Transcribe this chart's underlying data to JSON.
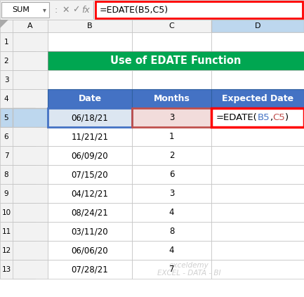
{
  "title": "Use of EDATE Function",
  "title_bg": "#00A651",
  "title_color": "#FFFFFF",
  "header_bg": "#4472C4",
  "header_color": "#FFFFFF",
  "headers": [
    "Date",
    "Months",
    "Expected Date"
  ],
  "rows": [
    {
      "date": "06/18/21",
      "months": "3",
      "expected": "=EDATE(B5,C5)",
      "hi_date": true,
      "hi_months": true
    },
    {
      "date": "11/21/21",
      "months": "1",
      "expected": "",
      "hi_date": false,
      "hi_months": false
    },
    {
      "date": "06/09/20",
      "months": "2",
      "expected": "",
      "hi_date": false,
      "hi_months": false
    },
    {
      "date": "07/15/20",
      "months": "6",
      "expected": "",
      "hi_date": false,
      "hi_months": false
    },
    {
      "date": "04/12/21",
      "months": "3",
      "expected": "",
      "hi_date": false,
      "hi_months": false
    },
    {
      "date": "08/24/21",
      "months": "4",
      "expected": "",
      "hi_date": false,
      "hi_months": false
    },
    {
      "date": "03/11/20",
      "months": "8",
      "expected": "",
      "hi_date": false,
      "hi_months": false
    },
    {
      "date": "06/06/20",
      "months": "4",
      "expected": "",
      "hi_date": false,
      "hi_months": false
    },
    {
      "date": "07/28/21",
      "months": "7",
      "expected": "",
      "hi_date": false,
      "hi_months": false
    }
  ],
  "formula_bar_text": "=EDATE(B5,C5)",
  "name_box": "SUM",
  "col_labels": [
    "A",
    "B",
    "C",
    "D"
  ],
  "row_labels": [
    "1",
    "2",
    "3",
    "4",
    "5",
    "6",
    "7",
    "8",
    "9",
    "10",
    "11",
    "12",
    "13"
  ],
  "hi_date_bg": "#DCE6F1",
  "hi_months_bg": "#F2DCDB",
  "formula_red": "#FF0000",
  "b5_color": "#4472C4",
  "c5_color": "#C0504D",
  "border_blue": "#4472C4",
  "border_orange": "#C0504D",
  "watermark": "exceldemy\nEXCEL - DATA - BI",
  "bg_color": "#FFFFFF",
  "grid_color": "#D0D0D0",
  "row_header_bg": "#F2F2F2",
  "col_header_sel_bg": "#BDD7EE"
}
